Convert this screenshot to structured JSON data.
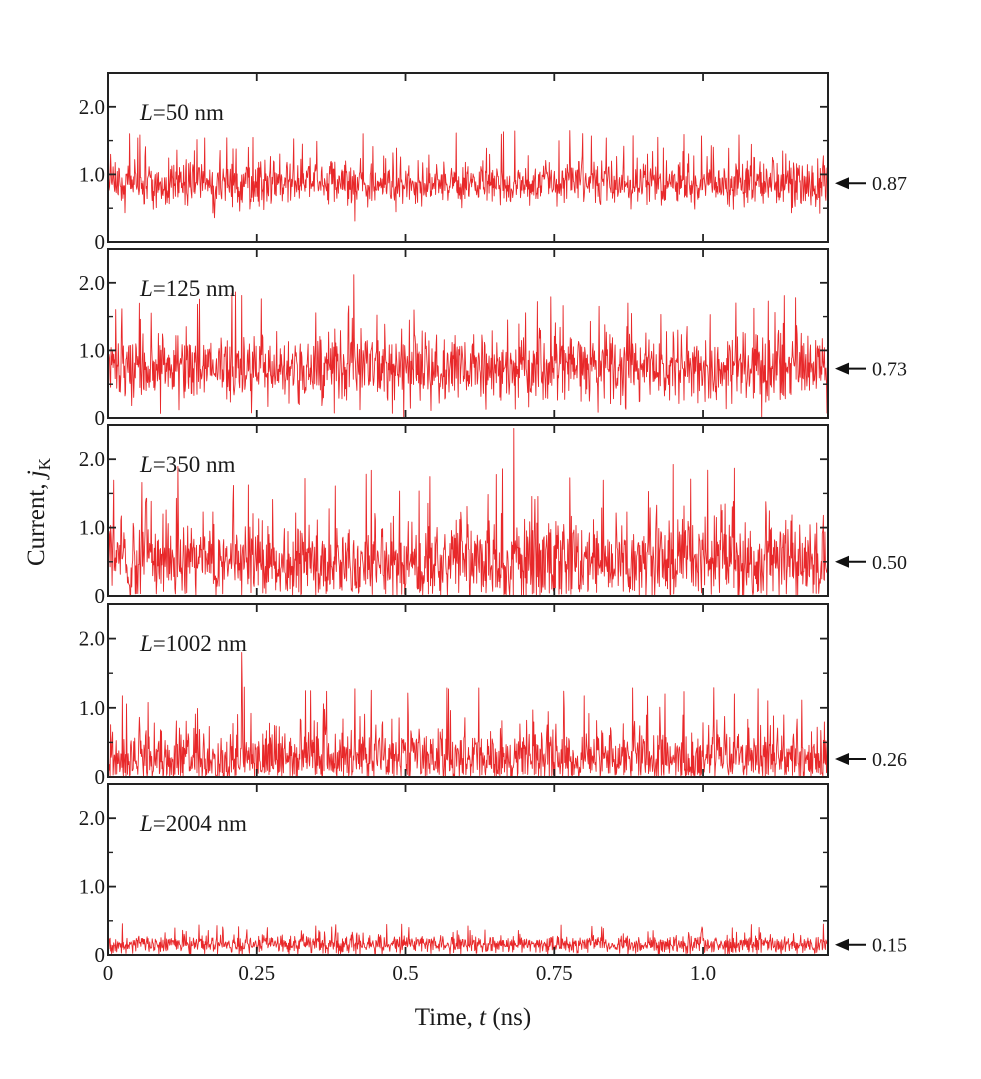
{
  "chart_data": {
    "type": "line",
    "xlabel": {
      "prefix": "Time, ",
      "var": "t",
      "suffix": " (ns)"
    },
    "ylabel": {
      "prefix": "Current, ",
      "var": "j",
      "sub": "K"
    },
    "xlim": [
      0,
      1.21
    ],
    "ylim": [
      0,
      2.5
    ],
    "x_ticks": [
      0,
      0.25,
      0.5,
      0.75,
      1.0
    ],
    "x_tick_labels": [
      "0",
      "0.25",
      "0.5",
      "0.75",
      "1.0"
    ],
    "y_ticks": [
      0,
      1.0,
      2.0
    ],
    "y_tick_labels": [
      "0",
      "1.0",
      "2.0"
    ],
    "series_color": "#e8282a",
    "panels": [
      {
        "label_var": "L",
        "label_rest": "=50 nm",
        "mean": 0.87,
        "mean_label": "0.87",
        "peak": 1.35,
        "spread": 0.3
      },
      {
        "label_var": "L",
        "label_rest": "=125 nm",
        "mean": 0.73,
        "mean_label": "0.73",
        "peak": 2.12,
        "spread": 0.45
      },
      {
        "label_var": "L",
        "label_rest": "=350 nm",
        "mean": 0.5,
        "mean_label": "0.50",
        "peak": 2.45,
        "spread": 0.55
      },
      {
        "label_var": "L",
        "label_rest": "=1002 nm",
        "mean": 0.26,
        "mean_label": "0.26",
        "peak": 1.8,
        "spread": 0.4
      },
      {
        "label_var": "L",
        "label_rest": "=2004 nm",
        "mean": 0.15,
        "mean_label": "0.15",
        "peak": 0.45,
        "spread": 0.12
      }
    ]
  }
}
